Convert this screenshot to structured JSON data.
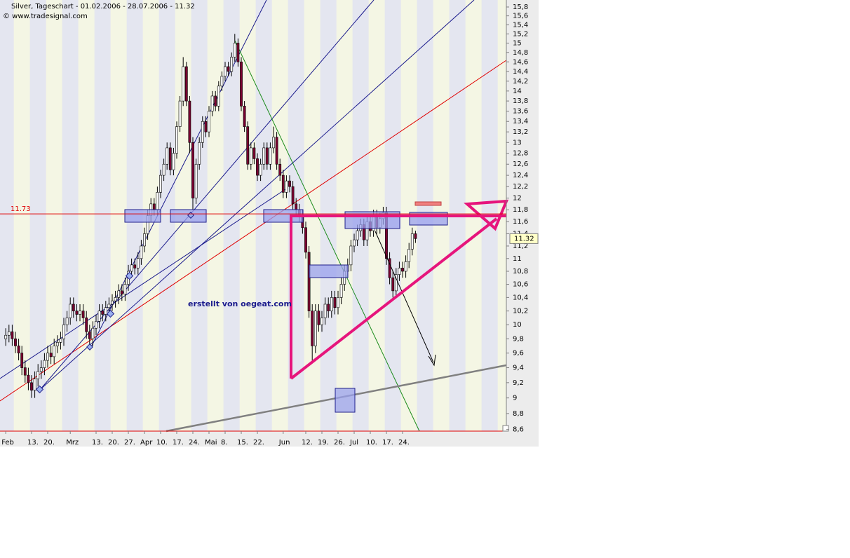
{
  "chart_data": {
    "type": "candlestick",
    "title": "Silver, Tageschart - 01.02.2006 - 28.07.2006 - 11.32",
    "subtitle": "© www.tradesignal.com",
    "annotation": "erstellt von oegeat.com",
    "log_scale": true,
    "ylim": [
      8.58,
      15.96
    ],
    "yticks": [
      {
        "value": 8.6,
        "label": "8,6"
      },
      {
        "value": 8.8,
        "label": "8,8"
      },
      9,
      {
        "value": 9.2,
        "label": "9,2"
      },
      {
        "value": 9.4,
        "label": "9,4"
      },
      {
        "value": 9.6,
        "label": "9,6"
      },
      {
        "value": 9.8,
        "label": "9,8"
      },
      10,
      {
        "value": 10.2,
        "label": "10,2"
      },
      {
        "value": 10.4,
        "label": "10,4"
      },
      {
        "value": 10.6,
        "label": "10,6"
      },
      {
        "value": 10.8,
        "label": "10,8"
      },
      11,
      {
        "value": 11.2,
        "label": "11,2"
      },
      {
        "value": 11.4,
        "label": "11,4"
      },
      {
        "value": 11.6,
        "label": "11,6"
      },
      {
        "value": 11.8,
        "label": "11,8"
      },
      12,
      {
        "value": 12.2,
        "label": "12,2"
      },
      {
        "value": 12.4,
        "label": "12,4"
      },
      {
        "value": 12.6,
        "label": "12,6"
      },
      {
        "value": 12.8,
        "label": "12,8"
      },
      13,
      {
        "value": 13.2,
        "label": "13,2"
      },
      {
        "value": 13.4,
        "label": "13,4"
      },
      {
        "value": 13.6,
        "label": "13,6"
      },
      {
        "value": 13.8,
        "label": "13,8"
      },
      14,
      {
        "value": 14.2,
        "label": "14,2"
      },
      {
        "value": 14.4,
        "label": "14,4"
      },
      {
        "value": 14.6,
        "label": "14,6"
      },
      {
        "value": 14.8,
        "label": "14,8"
      },
      15,
      {
        "value": 15.2,
        "label": "15,2"
      },
      {
        "value": 15.4,
        "label": "15,4"
      },
      {
        "value": 15.6,
        "label": "15,6"
      },
      {
        "value": 15.8,
        "label": "15,8"
      }
    ],
    "hline": {
      "value": 11.73,
      "color": "#e00000"
    },
    "last_price": 11.32,
    "up_color": "#ffffff",
    "down_color": "#7a0030",
    "categories": [
      "Feb",
      null,
      null,
      null,
      null,
      null,
      null,
      null,
      "13.",
      null,
      null,
      null,
      null,
      "20.",
      null,
      null,
      null,
      null,
      null,
      null,
      "Mrz",
      null,
      null,
      null,
      null,
      null,
      null,
      null,
      "13.",
      null,
      null,
      null,
      null,
      "20.",
      null,
      null,
      null,
      null,
      "27.",
      null,
      null,
      null,
      null,
      "Apr",
      null,
      null,
      null,
      null,
      "10.",
      null,
      null,
      null,
      null,
      "17.",
      null,
      null,
      null,
      null,
      "24.",
      null,
      null,
      null,
      null,
      "Mai",
      null,
      null,
      null,
      null,
      "8.",
      null,
      null,
      null,
      null,
      "15.",
      null,
      null,
      null,
      null,
      "22.",
      null,
      null,
      null,
      null,
      null,
      null,
      null,
      "Jun",
      null,
      null,
      null,
      null,
      null,
      null,
      "12.",
      null,
      null,
      null,
      null,
      "19.",
      null,
      null,
      null,
      null,
      "26.",
      null,
      null,
      null,
      null,
      "Jul",
      null,
      null,
      null,
      null,
      "10.",
      null,
      null,
      null,
      null,
      "17.",
      null,
      null,
      null,
      null,
      "24.",
      null,
      null,
      null,
      null
    ],
    "open": [
      9.8,
      9.85,
      9.9,
      9.8,
      9.7,
      9.6,
      9.4,
      9.3,
      9.2,
      9.1,
      9.25,
      9.35,
      9.4,
      9.5,
      9.6,
      9.55,
      9.7,
      9.75,
      9.8,
      10.0,
      10.1,
      10.3,
      10.2,
      10.15,
      10.2,
      10.1,
      9.9,
      9.8,
      9.95,
      10.05,
      10.2,
      10.15,
      10.25,
      10.3,
      10.35,
      10.4,
      10.5,
      10.45,
      10.6,
      10.8,
      10.9,
      10.85,
      11.0,
      11.2,
      11.4,
      11.7,
      11.9,
      11.8,
      12.1,
      12.4,
      12.6,
      12.9,
      12.5,
      12.8,
      13.3,
      13.8,
      14.5,
      13.8,
      13.0,
      12.0,
      12.6,
      13.0,
      13.4,
      13.2,
      13.6,
      13.9,
      13.7,
      14.1,
      14.3,
      14.5,
      14.4,
      14.7,
      15.0,
      14.6,
      13.7,
      13.3,
      12.6,
      12.9,
      12.7,
      12.4,
      12.6,
      12.9,
      12.6,
      12.9,
      13.1,
      12.6,
      12.4,
      12.1,
      12.3,
      12.2,
      11.9,
      11.8,
      11.7,
      11.5,
      11.1,
      10.2,
      9.7,
      10.2,
      10.0,
      10.1,
      10.3,
      10.2,
      10.4,
      10.25,
      10.4,
      10.6,
      10.8,
      10.9,
      11.2,
      11.3,
      11.45,
      11.55,
      11.3,
      11.6,
      11.45,
      11.7,
      11.5,
      11.65,
      11.75,
      11.0,
      10.7,
      10.5,
      10.75,
      10.85,
      10.8,
      10.95,
      11.15,
      11.4
    ],
    "high": [
      9.95,
      10.0,
      10.0,
      9.9,
      9.8,
      9.7,
      9.5,
      9.4,
      9.3,
      9.35,
      9.45,
      9.5,
      9.6,
      9.7,
      9.7,
      9.8,
      9.85,
      9.9,
      10.1,
      10.2,
      10.4,
      10.4,
      10.3,
      10.3,
      10.3,
      10.2,
      10.0,
      10.05,
      10.15,
      10.3,
      10.3,
      10.35,
      10.4,
      10.45,
      10.5,
      10.6,
      10.6,
      10.7,
      10.9,
      11.0,
      11.0,
      11.1,
      11.3,
      11.5,
      11.8,
      12.0,
      12.0,
      12.2,
      12.5,
      12.7,
      13.0,
      13.0,
      12.9,
      13.4,
      13.9,
      14.7,
      14.6,
      13.9,
      13.1,
      12.7,
      13.1,
      13.5,
      13.5,
      13.7,
      14.0,
      14.0,
      14.2,
      14.4,
      14.6,
      14.6,
      14.8,
      15.2,
      15.1,
      14.7,
      13.8,
      13.4,
      13.0,
      13.0,
      12.8,
      12.7,
      13.0,
      13.0,
      13.0,
      13.3,
      13.2,
      12.7,
      12.5,
      12.4,
      12.4,
      12.3,
      12.0,
      11.9,
      11.8,
      11.6,
      11.2,
      10.3,
      10.3,
      10.3,
      10.2,
      10.4,
      10.4,
      10.5,
      10.5,
      10.5,
      10.7,
      10.9,
      11.0,
      11.3,
      11.4,
      11.55,
      11.65,
      11.65,
      11.7,
      11.7,
      11.8,
      11.8,
      11.75,
      11.85,
      11.85,
      11.1,
      10.8,
      10.85,
      10.95,
      10.95,
      11.05,
      11.25,
      11.5,
      11.45
    ],
    "low": [
      9.7,
      9.75,
      9.7,
      9.6,
      9.5,
      9.3,
      9.2,
      9.1,
      9.0,
      9.0,
      9.15,
      9.25,
      9.3,
      9.4,
      9.45,
      9.45,
      9.6,
      9.65,
      9.7,
      9.9,
      10.0,
      10.1,
      10.05,
      10.05,
      10.0,
      9.8,
      9.7,
      9.7,
      9.85,
      9.95,
      10.05,
      10.05,
      10.15,
      10.2,
      10.25,
      10.3,
      10.35,
      10.35,
      10.5,
      10.7,
      10.75,
      10.75,
      10.9,
      11.1,
      11.3,
      11.6,
      11.7,
      11.7,
      12.0,
      12.3,
      12.5,
      12.4,
      12.4,
      12.7,
      13.2,
      13.7,
      13.7,
      12.8,
      11.8,
      11.9,
      12.5,
      12.9,
      13.1,
      13.1,
      13.5,
      13.6,
      13.6,
      14.0,
      14.2,
      14.3,
      14.3,
      14.6,
      14.5,
      13.6,
      13.2,
      12.5,
      12.5,
      12.6,
      12.3,
      12.3,
      12.5,
      12.5,
      12.5,
      12.8,
      12.5,
      12.3,
      12.0,
      12.0,
      12.1,
      11.8,
      11.7,
      11.6,
      11.4,
      11.0,
      10.1,
      9.5,
      9.6,
      9.9,
      9.9,
      10.0,
      10.1,
      10.1,
      10.15,
      10.15,
      10.3,
      10.5,
      10.7,
      10.8,
      11.1,
      11.2,
      11.35,
      11.2,
      11.2,
      11.35,
      11.35,
      11.4,
      11.4,
      11.55,
      10.9,
      10.6,
      10.4,
      10.4,
      10.65,
      10.7,
      10.7,
      10.85,
      11.05,
      11.25
    ],
    "close": [
      9.85,
      9.9,
      9.8,
      9.7,
      9.6,
      9.4,
      9.3,
      9.2,
      9.1,
      9.25,
      9.35,
      9.4,
      9.5,
      9.6,
      9.55,
      9.7,
      9.75,
      9.8,
      10.0,
      10.1,
      10.3,
      10.2,
      10.15,
      10.2,
      10.1,
      9.9,
      9.8,
      9.95,
      10.05,
      10.2,
      10.15,
      10.25,
      10.3,
      10.35,
      10.4,
      10.5,
      10.45,
      10.6,
      10.8,
      10.9,
      10.85,
      11.0,
      11.2,
      11.4,
      11.7,
      11.9,
      11.8,
      12.1,
      12.4,
      12.6,
      12.9,
      12.5,
      12.8,
      13.3,
      13.8,
      14.5,
      13.8,
      13.0,
      12.0,
      12.6,
      13.0,
      13.4,
      13.2,
      13.6,
      13.9,
      13.7,
      14.1,
      14.3,
      14.5,
      14.4,
      14.7,
      15.0,
      14.6,
      13.7,
      13.3,
      12.6,
      12.9,
      12.7,
      12.4,
      12.6,
      12.9,
      12.6,
      12.9,
      13.1,
      12.6,
      12.4,
      12.1,
      12.3,
      12.2,
      11.9,
      11.8,
      11.7,
      11.5,
      11.1,
      10.2,
      9.7,
      10.2,
      10.0,
      10.1,
      10.3,
      10.2,
      10.4,
      10.25,
      10.4,
      10.6,
      10.8,
      10.9,
      11.2,
      11.3,
      11.45,
      11.55,
      11.3,
      11.6,
      11.45,
      11.7,
      11.5,
      11.65,
      11.75,
      11.0,
      10.7,
      10.5,
      10.75,
      10.85,
      10.8,
      10.95,
      11.15,
      11.4,
      11.32
    ]
  }
}
